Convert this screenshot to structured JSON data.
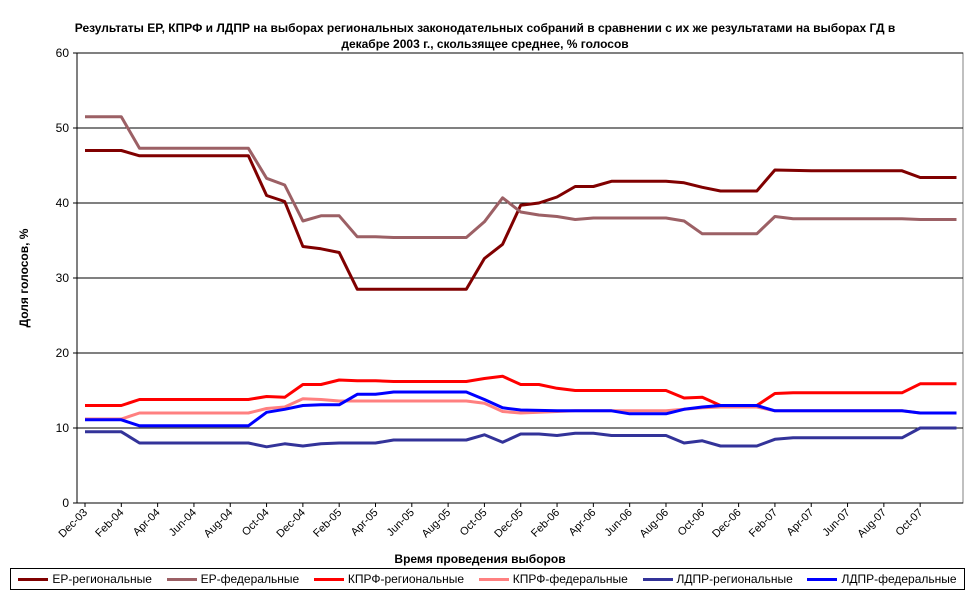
{
  "chart_data": {
    "type": "line",
    "title": "Результаты ЕР, КПРФ и ЛДПР на выборах региональных законодательных собраний в сравнении с их же результатами на выборах ГД в декабре 2003 г., скользящее среднее, % голосов",
    "xlabel": "Время проведения выборов",
    "ylabel": "Доля голосов, %",
    "ylim": [
      0,
      60
    ],
    "yticks": [
      0,
      10,
      20,
      30,
      40,
      50,
      60
    ],
    "grid": "horizontal",
    "legend_position": "bottom",
    "x_range": [
      "Dec-03",
      "Jan-08"
    ],
    "xticks": [
      "Dec-03",
      "Feb-04",
      "Apr-04",
      "Jun-04",
      "Aug-04",
      "Oct-04",
      "Dec-04",
      "Feb-05",
      "Apr-05",
      "Jun-05",
      "Aug-05",
      "Oct-05",
      "Dec-05",
      "Feb-06",
      "Apr-06",
      "Jun-06",
      "Aug-06",
      "Oct-06",
      "Dec-06",
      "Feb-07",
      "Apr-07",
      "Jun-07",
      "Aug-07",
      "Oct-07"
    ],
    "series": [
      {
        "name": "ЕР-региональные",
        "color": "#800000",
        "points": [
          [
            "Dec-03",
            47
          ],
          [
            "Feb-04",
            47
          ],
          [
            "Mar-04",
            46.3
          ],
          [
            "Apr-04",
            46.3
          ],
          [
            "Sep-04",
            46.3
          ],
          [
            "Oct-04",
            41
          ],
          [
            "Nov-04",
            40.2
          ],
          [
            "Dec-04",
            34.2
          ],
          [
            "Jan-05",
            33.9
          ],
          [
            "Feb-05",
            33.4
          ],
          [
            "Mar-05",
            28.5
          ],
          [
            "Jun-05",
            28.5
          ],
          [
            "Sep-05",
            28.5
          ],
          [
            "Oct-05",
            32.6
          ],
          [
            "Nov-05",
            34.5
          ],
          [
            "Dec-05",
            39.7
          ],
          [
            "Jan-06",
            40
          ],
          [
            "Feb-06",
            40.8
          ],
          [
            "Mar-06",
            42.2
          ],
          [
            "Apr-06",
            42.2
          ],
          [
            "May-06",
            42.9
          ],
          [
            "Aug-06",
            42.9
          ],
          [
            "Sep-06",
            42.7
          ],
          [
            "Oct-06",
            42.1
          ],
          [
            "Nov-06",
            41.6
          ],
          [
            "Jan-07",
            41.6
          ],
          [
            "Feb-07",
            44.4
          ],
          [
            "Apr-07",
            44.3
          ],
          [
            "Sep-07",
            44.3
          ],
          [
            "Oct-07",
            43.4
          ],
          [
            "Dec-07",
            43.4
          ]
        ]
      },
      {
        "name": "ЕР-федеральные",
        "color": "#9c6065",
        "points": [
          [
            "Dec-03",
            51.5
          ],
          [
            "Feb-04",
            51.5
          ],
          [
            "Mar-04",
            47.3
          ],
          [
            "Sep-04",
            47.3
          ],
          [
            "Oct-04",
            43.3
          ],
          [
            "Nov-04",
            42.4
          ],
          [
            "Dec-04",
            37.6
          ],
          [
            "Jan-05",
            38.3
          ],
          [
            "Feb-05",
            38.3
          ],
          [
            "Mar-05",
            35.5
          ],
          [
            "Apr-05",
            35.5
          ],
          [
            "May-05",
            35.4
          ],
          [
            "Sep-05",
            35.4
          ],
          [
            "Oct-05",
            37.5
          ],
          [
            "Nov-05",
            40.7
          ],
          [
            "Dec-05",
            38.8
          ],
          [
            "Jan-06",
            38.4
          ],
          [
            "Feb-06",
            38.2
          ],
          [
            "Mar-06",
            37.8
          ],
          [
            "Apr-06",
            38
          ],
          [
            "Aug-06",
            38
          ],
          [
            "Sep-06",
            37.6
          ],
          [
            "Oct-06",
            35.9
          ],
          [
            "Jan-07",
            35.9
          ],
          [
            "Feb-07",
            38.2
          ],
          [
            "Mar-07",
            37.9
          ],
          [
            "Sep-07",
            37.9
          ],
          [
            "Oct-07",
            37.8
          ],
          [
            "Dec-07",
            37.8
          ]
        ]
      },
      {
        "name": "КПРФ-региональные",
        "color": "#ff0000",
        "points": [
          [
            "Dec-03",
            13
          ],
          [
            "Feb-04",
            13
          ],
          [
            "Mar-04",
            13.8
          ],
          [
            "Sep-04",
            13.8
          ],
          [
            "Oct-04",
            14.2
          ],
          [
            "Nov-04",
            14.1
          ],
          [
            "Dec-04",
            15.8
          ],
          [
            "Jan-05",
            15.8
          ],
          [
            "Feb-05",
            16.4
          ],
          [
            "Mar-05",
            16.3
          ],
          [
            "Apr-05",
            16.3
          ],
          [
            "May-05",
            16.2
          ],
          [
            "Sep-05",
            16.2
          ],
          [
            "Oct-05",
            16.6
          ],
          [
            "Nov-05",
            16.9
          ],
          [
            "Dec-05",
            15.8
          ],
          [
            "Jan-06",
            15.8
          ],
          [
            "Feb-06",
            15.3
          ],
          [
            "Mar-06",
            15
          ],
          [
            "Aug-06",
            15
          ],
          [
            "Sep-06",
            14
          ],
          [
            "Oct-06",
            14.1
          ],
          [
            "Nov-06",
            13
          ],
          [
            "Jan-07",
            13
          ],
          [
            "Feb-07",
            14.6
          ],
          [
            "Mar-07",
            14.7
          ],
          [
            "Sep-07",
            14.7
          ],
          [
            "Oct-07",
            15.9
          ],
          [
            "Dec-07",
            15.9
          ]
        ]
      },
      {
        "name": "КПРФ-федеральные",
        "color": "#ff8080",
        "points": [
          [
            "Dec-03",
            11.2
          ],
          [
            "Feb-04",
            11.2
          ],
          [
            "Mar-04",
            12
          ],
          [
            "Sep-04",
            12
          ],
          [
            "Oct-04",
            12.6
          ],
          [
            "Nov-04",
            12.8
          ],
          [
            "Dec-04",
            13.9
          ],
          [
            "Jan-05",
            13.8
          ],
          [
            "Feb-05",
            13.6
          ],
          [
            "Mar-05",
            13.6
          ],
          [
            "Sep-05",
            13.6
          ],
          [
            "Oct-05",
            13.3
          ],
          [
            "Nov-05",
            12.2
          ],
          [
            "Dec-05",
            12
          ],
          [
            "Jan-06",
            12.1
          ],
          [
            "Feb-06",
            12.2
          ],
          [
            "Mar-06",
            12.3
          ],
          [
            "Aug-06",
            12.3
          ],
          [
            "Sep-06",
            12.5
          ],
          [
            "Oct-06",
            12.7
          ],
          [
            "Nov-06",
            12.8
          ],
          [
            "Jan-07",
            12.8
          ],
          [
            "Feb-07",
            12.3
          ],
          [
            "Sep-07",
            12.3
          ],
          [
            "Oct-07",
            12
          ],
          [
            "Dec-07",
            12
          ]
        ]
      },
      {
        "name": "ЛДПР-региональные",
        "color": "#333399",
        "points": [
          [
            "Dec-03",
            9.5
          ],
          [
            "Feb-04",
            9.5
          ],
          [
            "Mar-04",
            8
          ],
          [
            "Sep-04",
            8
          ],
          [
            "Oct-04",
            7.5
          ],
          [
            "Nov-04",
            7.9
          ],
          [
            "Dec-04",
            7.6
          ],
          [
            "Jan-05",
            7.9
          ],
          [
            "Feb-05",
            8
          ],
          [
            "Apr-05",
            8
          ],
          [
            "May-05",
            8.4
          ],
          [
            "Sep-05",
            8.4
          ],
          [
            "Oct-05",
            9.1
          ],
          [
            "Nov-05",
            8.1
          ],
          [
            "Dec-05",
            9.2
          ],
          [
            "Jan-06",
            9.2
          ],
          [
            "Feb-06",
            9
          ],
          [
            "Mar-06",
            9.3
          ],
          [
            "Apr-06",
            9.3
          ],
          [
            "May-06",
            9
          ],
          [
            "Aug-06",
            9
          ],
          [
            "Sep-06",
            8
          ],
          [
            "Oct-06",
            8.3
          ],
          [
            "Nov-06",
            7.6
          ],
          [
            "Jan-07",
            7.6
          ],
          [
            "Feb-07",
            8.5
          ],
          [
            "Mar-07",
            8.7
          ],
          [
            "Sep-07",
            8.7
          ],
          [
            "Oct-07",
            10
          ],
          [
            "Dec-07",
            10
          ]
        ]
      },
      {
        "name": "ЛДПР-федеральные",
        "color": "#0000ff",
        "points": [
          [
            "Dec-03",
            11.1
          ],
          [
            "Feb-04",
            11.1
          ],
          [
            "Mar-04",
            10.3
          ],
          [
            "Sep-04",
            10.3
          ],
          [
            "Oct-04",
            12.1
          ],
          [
            "Nov-04",
            12.5
          ],
          [
            "Dec-04",
            13
          ],
          [
            "Jan-05",
            13.1
          ],
          [
            "Feb-05",
            13.1
          ],
          [
            "Mar-05",
            14.5
          ],
          [
            "Apr-05",
            14.5
          ],
          [
            "May-05",
            14.8
          ],
          [
            "Sep-05",
            14.8
          ],
          [
            "Oct-05",
            13.8
          ],
          [
            "Nov-05",
            12.7
          ],
          [
            "Dec-05",
            12.4
          ],
          [
            "Feb-06",
            12.3
          ],
          [
            "May-06",
            12.3
          ],
          [
            "Jun-06",
            11.9
          ],
          [
            "Aug-06",
            11.9
          ],
          [
            "Sep-06",
            12.5
          ],
          [
            "Oct-06",
            12.8
          ],
          [
            "Nov-06",
            13
          ],
          [
            "Jan-07",
            13
          ],
          [
            "Feb-07",
            12.3
          ],
          [
            "Sep-07",
            12.3
          ],
          [
            "Oct-07",
            12
          ],
          [
            "Dec-07",
            12
          ]
        ]
      }
    ]
  }
}
